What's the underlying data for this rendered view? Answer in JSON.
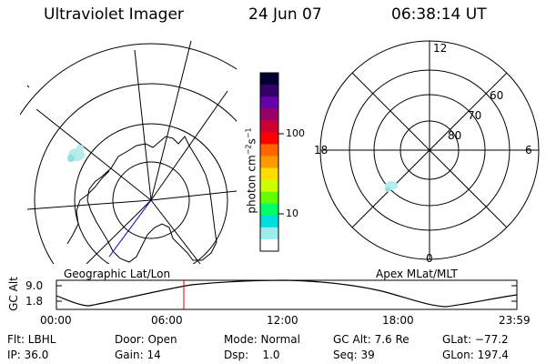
{
  "header": {
    "title": "Ultraviolet Imager",
    "date": "24 Jun 07",
    "time": "06:38:14 UT"
  },
  "colorbar": {
    "label": "photon cm-2s-1",
    "label_main": "photon cm",
    "label_exp1": "−2",
    "label_s": "s",
    "label_exp2": "−1",
    "ticks": [
      "100",
      "10"
    ],
    "tick_values": [
      100,
      10
    ],
    "colors": [
      "#000033",
      "#330066",
      "#6600aa",
      "#990066",
      "#cc0033",
      "#ff0000",
      "#ff6600",
      "#ff9900",
      "#ffdd00",
      "#ccff00",
      "#66ff00",
      "#00ff66",
      "#00dddd",
      "#99eeee",
      "#ffffff"
    ]
  },
  "left_panel": {
    "caption": "Geographic Lat/Lon"
  },
  "right_panel": {
    "caption": "Apex MLat/MLT",
    "mlt_labels": {
      "top": "12",
      "left": "18",
      "right": "6",
      "bottom": "0"
    },
    "mlat_labels": [
      "60",
      "70",
      "80"
    ]
  },
  "altitude_plot": {
    "ylabel": "GC Alt",
    "yticks": [
      "9.0",
      "1.8"
    ],
    "xticks": [
      "00:00",
      "06:00",
      "12:00",
      "18:00",
      "23:59"
    ],
    "current_time_hours": 6.64
  },
  "info": {
    "flt": "Flt: LBHL",
    "door": "Door: Open",
    "mode": "Mode: Normal",
    "gcalt": "GC Alt: 7.6 Re",
    "glat": "GLat: −77.2",
    "ip": "IP: 36.0",
    "gain": "Gain: 14",
    "dsp": "Dsp:    1.0",
    "seq": "Seq: 39",
    "glon": "GLon: 197.4"
  },
  "colors": {
    "marker": "#dd0000",
    "trace": "#0000cc",
    "aurora": "#b8ecec"
  }
}
